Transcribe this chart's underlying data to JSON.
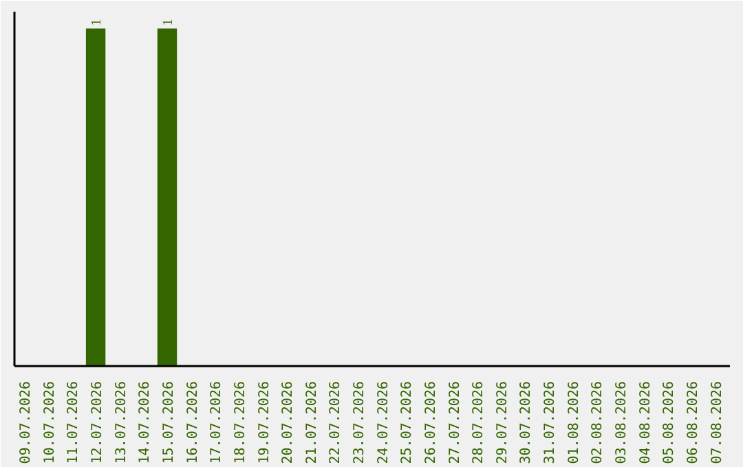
{
  "chart_data": {
    "type": "bar",
    "categories": [
      "09.07.2026",
      "10.07.2026",
      "11.07.2026",
      "12.07.2026",
      "13.07.2026",
      "14.07.2026",
      "15.07.2026",
      "16.07.2026",
      "17.07.2026",
      "18.07.2026",
      "19.07.2026",
      "20.07.2026",
      "21.07.2026",
      "22.07.2026",
      "23.07.2026",
      "24.07.2026",
      "25.07.2026",
      "26.07.2026",
      "27.07.2026",
      "28.07.2026",
      "29.07.2026",
      "30.07.2026",
      "31.07.2026",
      "01.08.2026",
      "02.08.2026",
      "03.08.2026",
      "04.08.2026",
      "05.08.2026",
      "06.08.2026",
      "07.08.2026"
    ],
    "values": [
      0,
      0,
      0,
      1,
      0,
      0,
      1,
      0,
      0,
      0,
      0,
      0,
      0,
      0,
      0,
      0,
      0,
      0,
      0,
      0,
      0,
      0,
      0,
      0,
      0,
      0,
      0,
      0,
      0,
      0
    ],
    "value_labels": [
      null,
      null,
      null,
      "1",
      null,
      null,
      "1",
      null,
      null,
      null,
      null,
      null,
      null,
      null,
      null,
      null,
      null,
      null,
      null,
      null,
      null,
      null,
      null,
      null,
      null,
      null,
      null,
      null,
      null,
      null
    ],
    "color": "#336600",
    "grid": false
  }
}
